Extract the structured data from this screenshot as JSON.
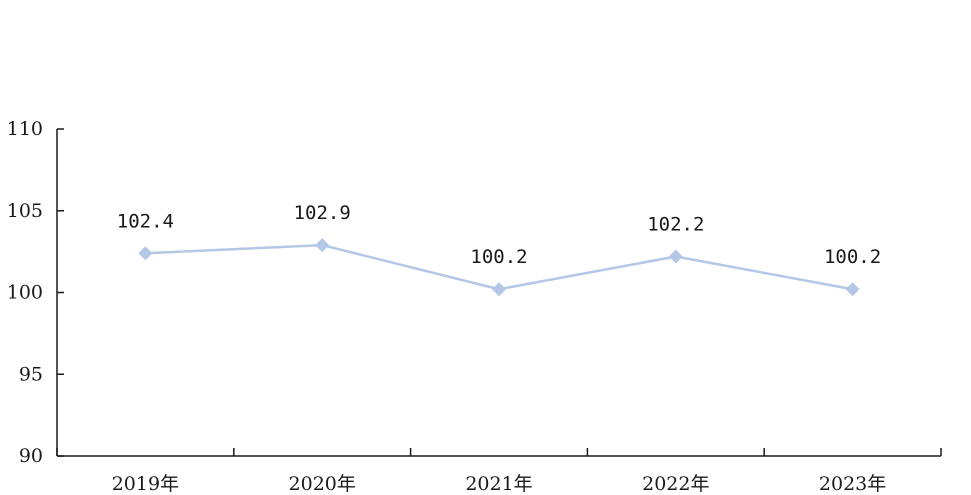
{
  "chart_data": {
    "type": "line",
    "title": "",
    "xlabel": "",
    "ylabel": "",
    "categories": [
      "2019年",
      "2020年",
      "2021年",
      "2022年",
      "2023年"
    ],
    "series": [
      {
        "values": [
          102.4,
          102.9,
          100.2,
          102.2,
          100.2
        ],
        "labels": [
          "102.4",
          "102.9",
          "100.2",
          "102.2",
          "100.2"
        ],
        "color": "#b4c7e7",
        "marker": "diamond"
      }
    ],
    "ylim": [
      90,
      110
    ],
    "yticks": [
      "90",
      "95",
      "100",
      "105",
      "110"
    ],
    "grid": false,
    "legend": "none"
  }
}
